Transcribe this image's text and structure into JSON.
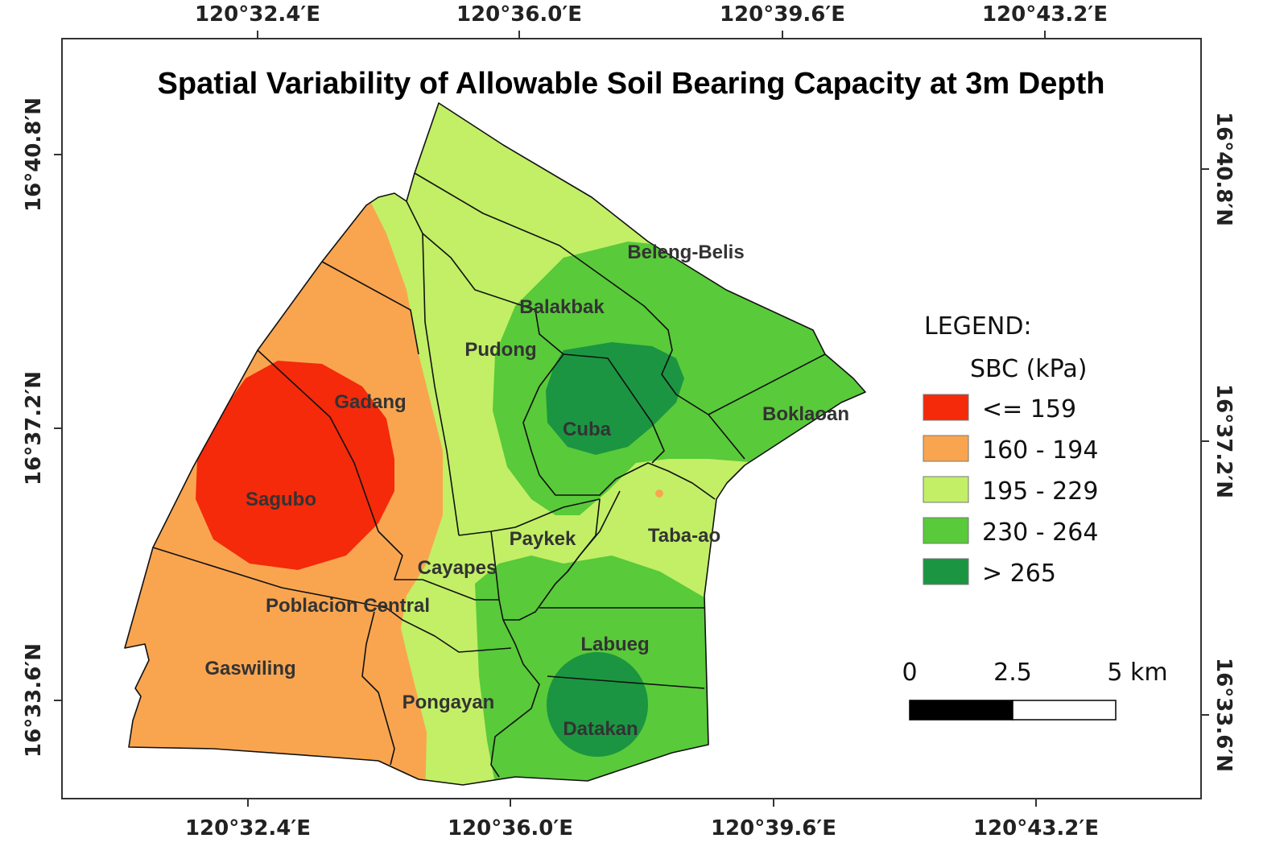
{
  "title": "Spatial Variability of Allowable Soil Bearing Capacity at 3m Depth",
  "axes": {
    "top_ticks": [
      "120°32.4′E",
      "120°36.0′E",
      "120°39.6′E",
      "120°43.2′E"
    ],
    "bottom_ticks": [
      "120°32.4′E",
      "120°36.0′E",
      "120°39.6′E",
      "120°43.2′E"
    ],
    "left_ticks": [
      "16°40.8′N",
      "16°37.2′N",
      "16°33.6′N"
    ],
    "right_ticks": [
      "16°40.8′N",
      "16°37.2′N",
      "16°33.6′N"
    ]
  },
  "barangays": [
    "Beleng-Belis",
    "Balakbak",
    "Pudong",
    "Gadang",
    "Cuba",
    "Boklaoan",
    "Sagubo",
    "Paykek",
    "Taba-ao",
    "Cayapes",
    "Poblacion Central",
    "Labueg",
    "Gaswiling",
    "Pongayan",
    "Datakan"
  ],
  "legend": {
    "heading": "LEGEND:",
    "subheading": "SBC (kPa)",
    "classes": [
      {
        "label": "<= 159",
        "color": "#f42a0a"
      },
      {
        "label": "160 - 194",
        "color": "#f9a550"
      },
      {
        "label": "195 - 229",
        "color": "#c2ef66"
      },
      {
        "label": "230 - 264",
        "color": "#59ca3a"
      },
      {
        "label": "> 265",
        "color": "#1b9541"
      }
    ]
  },
  "scale_bar": {
    "labels": [
      "0",
      "2.5",
      "5 km"
    ]
  }
}
